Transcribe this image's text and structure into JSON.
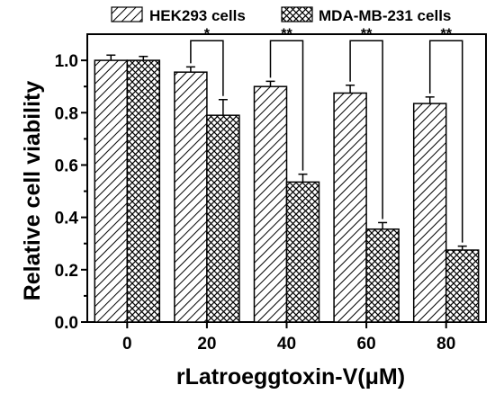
{
  "chart_data": {
    "type": "bar",
    "xlabel": "rLatroeggtoxin-V(μM)",
    "ylabel": "Relative cell viability",
    "categories": [
      "0",
      "20",
      "40",
      "60",
      "80"
    ],
    "ylim": [
      0,
      1.1
    ],
    "yticks": [
      "0.0",
      "0.2",
      "0.4",
      "0.6",
      "0.8",
      "1.0"
    ],
    "legend_position": "top",
    "series": [
      {
        "name": "HEK293 cells",
        "pattern": "diagonal-hatch",
        "values": [
          1.0,
          0.955,
          0.9,
          0.875,
          0.835
        ],
        "errors": [
          0.02,
          0.02,
          0.02,
          0.03,
          0.025
        ]
      },
      {
        "name": "MDA-MB-231 cells",
        "pattern": "crosshatch",
        "values": [
          1.0,
          0.79,
          0.535,
          0.355,
          0.275
        ],
        "errors": [
          0.015,
          0.06,
          0.03,
          0.025,
          0.015
        ]
      }
    ],
    "annotations": [
      {
        "category": "20",
        "text": "*"
      },
      {
        "category": "40",
        "text": "**"
      },
      {
        "category": "60",
        "text": "**"
      },
      {
        "category": "80",
        "text": "**"
      }
    ]
  }
}
